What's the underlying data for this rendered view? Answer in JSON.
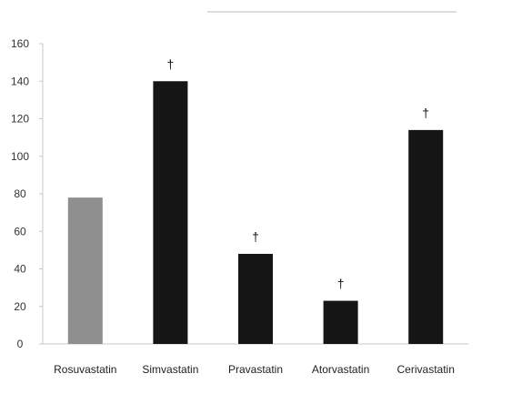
{
  "chart_data": {
    "type": "bar",
    "title": "",
    "xlabel": "",
    "ylabel": "",
    "ylim": [
      0,
      160
    ],
    "yticks": [
      0,
      20,
      40,
      60,
      80,
      100,
      120,
      140,
      160
    ],
    "categories": [
      "Rosuvastatin",
      "Simvastatin",
      "Pravastatin",
      "Atorvastatin",
      "Cerivastatin"
    ],
    "values": [
      78,
      140,
      48,
      23,
      114
    ],
    "annotations": [
      "",
      "†",
      "†",
      "†",
      "†"
    ],
    "bar_colors": [
      "#8f8f8f",
      "#151515",
      "#151515",
      "#151515",
      "#151515"
    ],
    "grid": false,
    "legend": "none"
  }
}
